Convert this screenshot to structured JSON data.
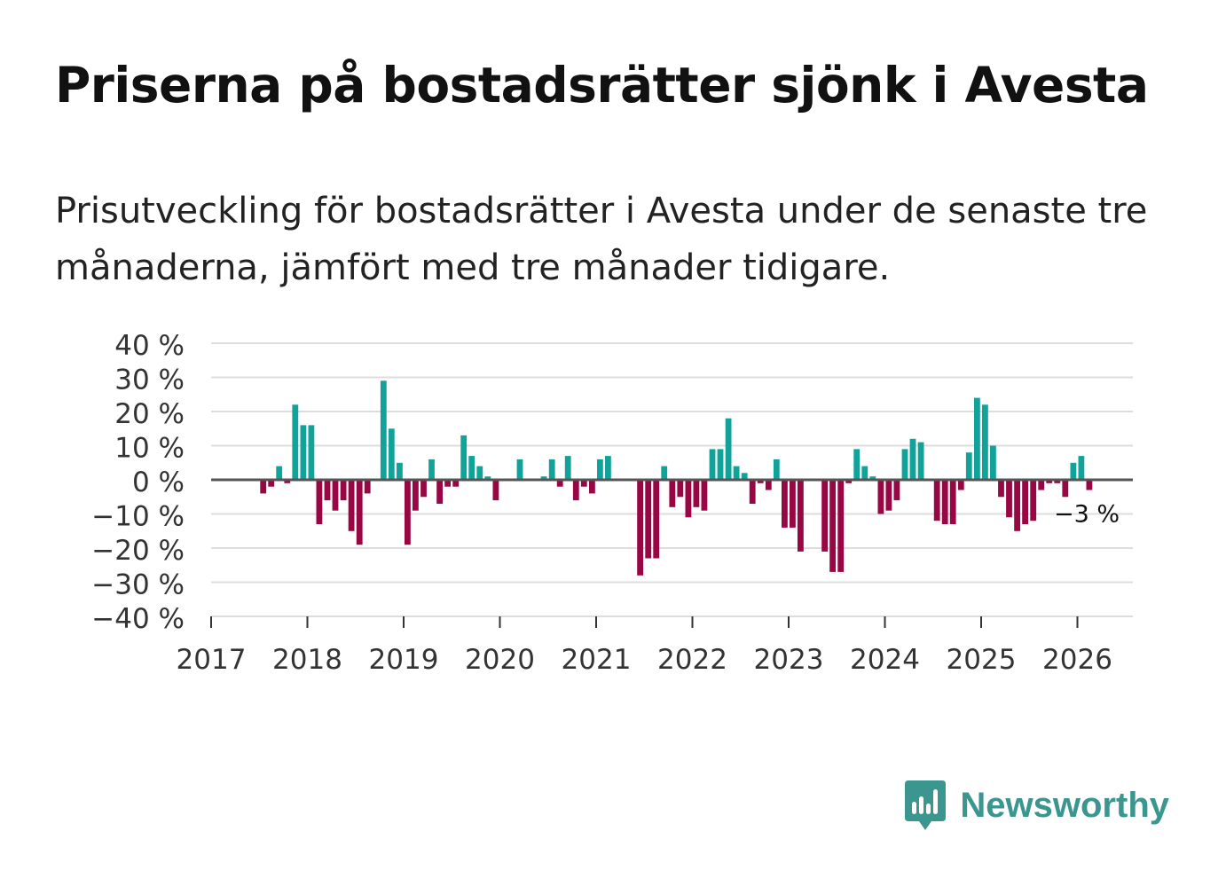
{
  "title": "Priserna på bostadsrätter sjönk i Avesta",
  "subtitle": "Prisutveckling för bostadsrätter i Avesta under de senaste tre månaderna, jämfört med tre månader tidigare.",
  "brand": {
    "name": "Newsworthy",
    "icon": "newsworthy-logo-icon"
  },
  "colors": {
    "positive": "#11a39a",
    "negative": "#980644",
    "grid": "#dddddd",
    "zero": "#555555",
    "text": "#333333",
    "brand": "#3a968e"
  },
  "chart_data": {
    "type": "bar",
    "title": "",
    "xlabel": "",
    "ylabel": "",
    "x_start": "2017-01",
    "x_ticks": [
      "2017",
      "2018",
      "2019",
      "2020",
      "2021",
      "2022",
      "2023",
      "2024",
      "2025",
      "2026"
    ],
    "y_ticks": [
      "40 %",
      "30 %",
      "20 %",
      "10 %",
      "0 %",
      "−10 %",
      "−20 %",
      "−30 %",
      "−40 %"
    ],
    "ylim": [
      -40,
      40
    ],
    "grid": true,
    "values": [
      null,
      null,
      null,
      null,
      null,
      null,
      -4,
      -2,
      4,
      -1,
      22,
      16,
      16,
      -13,
      -6,
      -9,
      -6,
      -15,
      -19,
      -4,
      null,
      29,
      15,
      5,
      -19,
      -9,
      -5,
      6,
      -7,
      -2,
      -2,
      13,
      7,
      4,
      1,
      -6,
      null,
      null,
      6,
      null,
      null,
      1,
      6,
      -2,
      7,
      -6,
      -2,
      -4,
      6,
      7,
      null,
      null,
      null,
      -28,
      -23,
      -23,
      4,
      -8,
      -5,
      -11,
      -8,
      -9,
      9,
      9,
      18,
      4,
      2,
      -7,
      -1,
      -3,
      6,
      -14,
      -14,
      -21,
      null,
      null,
      -21,
      -27,
      -27,
      -1,
      9,
      4,
      1,
      -10,
      -9,
      -6,
      9,
      12,
      11,
      null,
      -12,
      -13,
      -13,
      -3,
      8,
      24,
      22,
      10,
      -5,
      -11,
      -15,
      -13,
      -12,
      -3,
      -1,
      -1,
      -5,
      5,
      7,
      -3
    ],
    "annotation": {
      "text": "−3 %",
      "value": -3
    }
  }
}
